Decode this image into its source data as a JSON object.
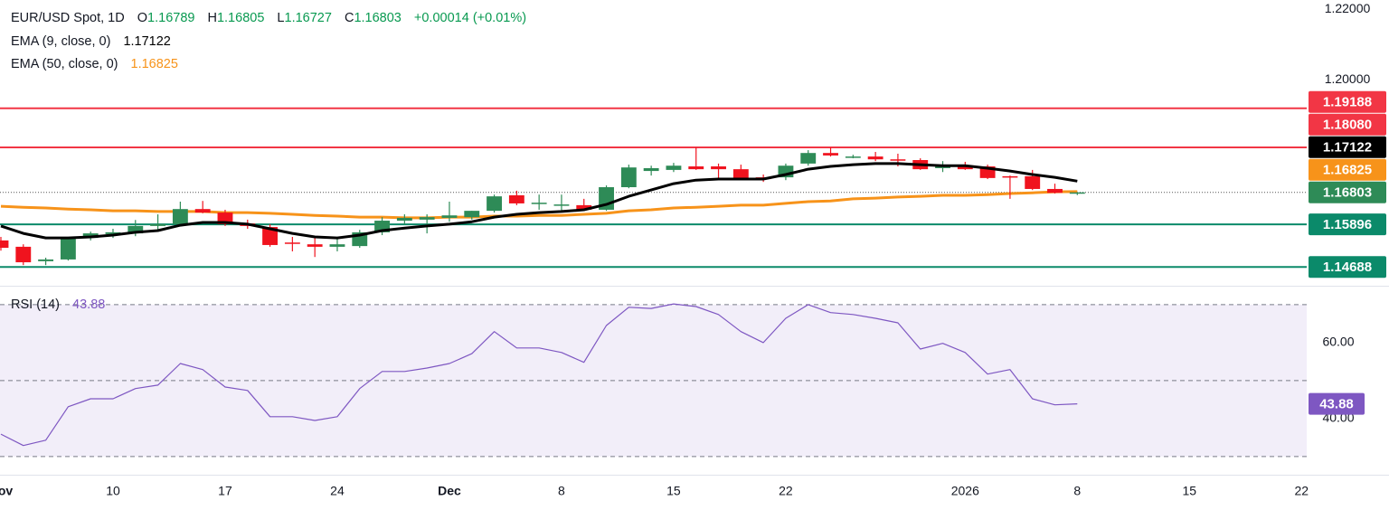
{
  "chart_data": {
    "type": "candlestick",
    "title": "EUR/USD Spot, 1D",
    "ohlc_labels": [
      "O",
      "H",
      "L",
      "C"
    ],
    "change": {
      "value": 0.00014,
      "label": "+0.00014"
    },
    "change_pct": {
      "value": 0.01,
      "label": "(+0.01%)"
    },
    "up_color": "#2e8b57",
    "down_color": "#f0131e",
    "text_up_color": "#089950",
    "candles": {
      "open": [
        1.1544,
        1.1526,
        1.1485,
        1.149,
        1.1551,
        1.1562,
        1.1564,
        1.1585,
        1.159,
        1.1633,
        1.1623,
        1.1592,
        1.1582,
        1.1538,
        1.1533,
        1.1526,
        1.1528,
        1.1567,
        1.16,
        1.1603,
        1.1608,
        1.161,
        1.1628,
        1.1672,
        1.1649,
        1.1644,
        1.1644,
        1.1631,
        1.1695,
        1.1741,
        1.1744,
        1.1754,
        1.1754,
        1.1746,
        1.1723,
        1.1723,
        1.1762,
        1.1792,
        1.1782,
        1.1782,
        1.1774,
        1.1772,
        1.1749,
        1.1756,
        1.1754,
        1.1726,
        1.1726,
        1.169,
        1.16789
      ],
      "high": [
        1.1554,
        1.1533,
        1.1495,
        1.1554,
        1.1569,
        1.1577,
        1.1602,
        1.1618,
        1.1654,
        1.1656,
        1.1631,
        1.1603,
        1.159,
        1.1554,
        1.1556,
        1.1554,
        1.1574,
        1.161,
        1.1618,
        1.1618,
        1.1654,
        1.1628,
        1.1674,
        1.1685,
        1.1674,
        1.1674,
        1.1662,
        1.17,
        1.1759,
        1.1756,
        1.1764,
        1.1808,
        1.1762,
        1.1759,
        1.1731,
        1.1762,
        1.18,
        1.1808,
        1.1787,
        1.1795,
        1.179,
        1.1777,
        1.1769,
        1.1767,
        1.1759,
        1.1728,
        1.1744,
        1.1705,
        1.16805
      ],
      "low": [
        1.1515,
        1.1474,
        1.1474,
        1.1487,
        1.1544,
        1.1551,
        1.1556,
        1.1574,
        1.1585,
        1.1621,
        1.1585,
        1.1577,
        1.1526,
        1.1513,
        1.1497,
        1.1513,
        1.1523,
        1.1559,
        1.159,
        1.1564,
        1.1597,
        1.1603,
        1.1623,
        1.1644,
        1.1631,
        1.1628,
        1.1628,
        1.1628,
        1.1692,
        1.1728,
        1.1738,
        1.1744,
        1.1718,
        1.1715,
        1.171,
        1.1715,
        1.1756,
        1.1782,
        1.1777,
        1.1769,
        1.1754,
        1.1744,
        1.1738,
        1.1744,
        1.1718,
        1.1662,
        1.1687,
        1.1677,
        1.16727
      ],
      "close": [
        1.1523,
        1.1482,
        1.149,
        1.1549,
        1.1564,
        1.1567,
        1.1585,
        1.159,
        1.1633,
        1.1623,
        1.159,
        1.1585,
        1.1531,
        1.1536,
        1.1526,
        1.1533,
        1.1567,
        1.16,
        1.1608,
        1.161,
        1.1615,
        1.1628,
        1.1669,
        1.1649,
        1.1651,
        1.1646,
        1.1631,
        1.1695,
        1.1751,
        1.1749,
        1.1756,
        1.1746,
        1.1746,
        1.1721,
        1.1718,
        1.1756,
        1.1792,
        1.1785,
        1.1782,
        1.1774,
        1.1772,
        1.1746,
        1.1756,
        1.1746,
        1.1721,
        1.1723,
        1.169,
        1.1679,
        1.16803
      ]
    },
    "indicators": [
      {
        "name": "EMA (9, close, 0)",
        "color": "#000000",
        "values": [
          1.1585,
          1.1564,
          1.1551,
          1.1551,
          1.1554,
          1.1559,
          1.1567,
          1.1572,
          1.1587,
          1.1595,
          1.1595,
          1.159,
          1.1577,
          1.1564,
          1.1554,
          1.1551,
          1.1559,
          1.1572,
          1.1579,
          1.1585,
          1.159,
          1.1597,
          1.161,
          1.1618,
          1.1623,
          1.1626,
          1.1631,
          1.1646,
          1.1669,
          1.1687,
          1.1705,
          1.1715,
          1.1718,
          1.1718,
          1.1718,
          1.1731,
          1.1746,
          1.1754,
          1.1759,
          1.1762,
          1.1762,
          1.1759,
          1.1756,
          1.1756,
          1.1749,
          1.1741,
          1.1731,
          1.1723,
          1.17122
        ]
      },
      {
        "name": "EMA (50, close, 0)",
        "color": "#f7931a",
        "values": [
          1.1641,
          1.1638,
          1.1636,
          1.1633,
          1.1631,
          1.1628,
          1.1628,
          1.1626,
          1.1626,
          1.1626,
          1.1623,
          1.1623,
          1.1621,
          1.1618,
          1.1615,
          1.1613,
          1.161,
          1.161,
          1.1608,
          1.1608,
          1.161,
          1.161,
          1.1613,
          1.1613,
          1.1615,
          1.1615,
          1.1618,
          1.1621,
          1.1628,
          1.1631,
          1.1636,
          1.1638,
          1.1641,
          1.1644,
          1.1644,
          1.1649,
          1.1654,
          1.1656,
          1.1662,
          1.1664,
          1.1667,
          1.1669,
          1.1672,
          1.1672,
          1.1674,
          1.1677,
          1.1679,
          1.1682,
          1.16825
        ]
      }
    ],
    "levels": [
      {
        "value": 1.19188,
        "color": "#f23645"
      },
      {
        "value": 1.1808,
        "label": "1.18080",
        "color": "#f23645"
      },
      {
        "value": 1.15896,
        "color": "#0b8a6a"
      },
      {
        "value": 1.14688,
        "color": "#0b8a6a"
      }
    ],
    "ylim": [
      1.1418,
      1.2226
    ],
    "yticks": [
      {
        "value": 1.22,
        "label": "1.22000"
      },
      {
        "value": 1.2,
        "label": "1.20000"
      }
    ],
    "xlim": [
      -0.04,
      58.23
    ],
    "xticks": [
      {
        "value": 0,
        "label": "Nov"
      },
      {
        "value": 5,
        "label": "10"
      },
      {
        "value": 10,
        "label": "17"
      },
      {
        "value": 15,
        "label": "24"
      },
      {
        "value": 20,
        "label": "Dec"
      },
      {
        "value": 25,
        "label": "8"
      },
      {
        "value": 30,
        "label": "15"
      },
      {
        "value": 35,
        "label": "22"
      },
      {
        "value": 43,
        "label": "2026"
      },
      {
        "value": 48,
        "label": "8"
      },
      {
        "value": 53,
        "label": "15"
      },
      {
        "value": 58,
        "label": "22"
      }
    ],
    "rsi": {
      "name": "RSI (14)",
      "color": "#7e57c2",
      "values": [
        35.9,
        32.9,
        34.3,
        43.1,
        45.2,
        45.2,
        47.9,
        48.8,
        54.5,
        52.9,
        48.3,
        47.4,
        40.5,
        40.5,
        39.5,
        40.5,
        47.9,
        52.4,
        52.4,
        53.3,
        54.5,
        57.1,
        62.9,
        58.6,
        58.6,
        57.4,
        54.8,
        64.5,
        69.3,
        69.0,
        70.2,
        69.5,
        67.4,
        62.9,
        60.0,
        66.4,
        70.0,
        67.9,
        67.4,
        66.4,
        65.2,
        58.3,
        59.8,
        57.4,
        51.7,
        52.9,
        45.2,
        43.6,
        43.88
      ],
      "ylim": [
        25.2,
        74.5
      ],
      "yticks": [
        {
          "value": 60,
          "label": "60.00"
        },
        {
          "value": 40,
          "label": "40.00"
        }
      ],
      "levels": [
        70,
        50,
        30
      ]
    }
  }
}
